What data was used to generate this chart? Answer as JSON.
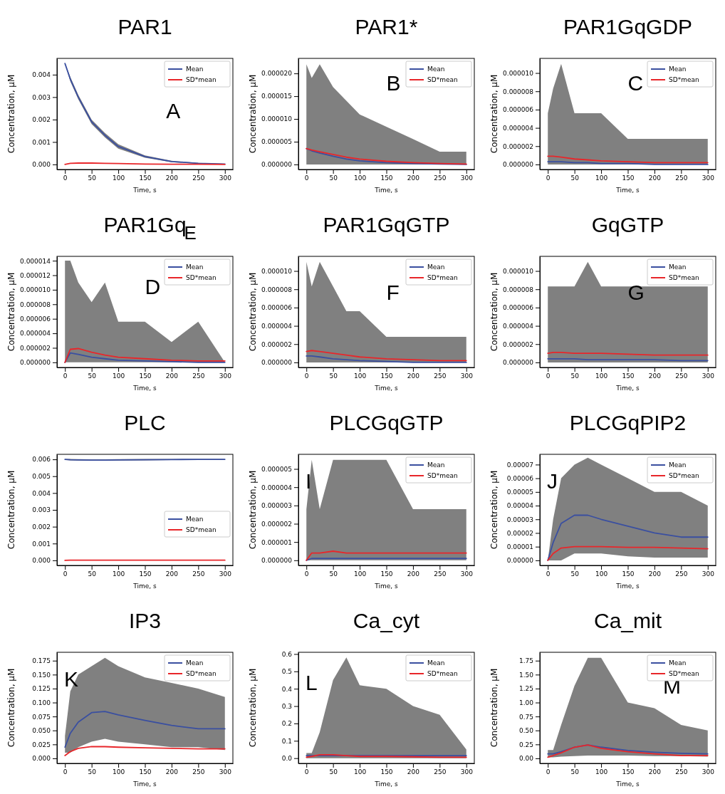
{
  "chart_data": [
    {
      "type": "line",
      "title": "PAR1",
      "xlabel": "Time, s",
      "ylabel": "Concentration, μM",
      "annotations": [
        "A"
      ],
      "legend": "top right",
      "x": [
        0,
        10,
        25,
        50,
        75,
        100,
        150,
        200,
        250,
        300
      ],
      "xlim": [
        -15,
        315
      ],
      "xticks": [
        0,
        50,
        100,
        150,
        200,
        250,
        300
      ],
      "ylim": [
        -0.000225,
        0.004725
      ],
      "yticks": [
        {
          "value": 0,
          "label": "0.000"
        },
        {
          "value": 0.001,
          "label": "0.001"
        },
        {
          "value": 0.002,
          "label": "0.002"
        },
        {
          "value": 0.003,
          "label": "0.003"
        },
        {
          "value": 0.004,
          "label": "0.004"
        }
      ],
      "series": [
        {
          "name": "Mean",
          "color": "#3a4fa0",
          "values": [
            0.0045,
            0.0038,
            0.003,
            0.0019,
            0.0013,
            0.0008,
            0.00035,
            0.00013,
            5e-05,
            2e-05
          ],
          "upper": [
            0.0045,
            0.0039,
            0.0031,
            0.002,
            0.0014,
            0.0009,
            0.0004,
            0.00016,
            7e-05,
            3e-05
          ],
          "lower": [
            0.0045,
            0.0037,
            0.0029,
            0.0018,
            0.0012,
            0.0007,
            0.0003,
            0.0001,
            3e-05,
            1e-05
          ]
        },
        {
          "name": "SD*mean",
          "color": "#e8262a",
          "values": [
            0,
            5e-05,
            6e-05,
            6e-05,
            5e-05,
            4e-05,
            2e-05,
            1e-05,
            1e-05,
            0
          ]
        }
      ]
    },
    {
      "type": "line",
      "title": "PAR1*",
      "xlabel": "Time, s",
      "ylabel": "Concentration, μM",
      "annotations": [
        "B"
      ],
      "legend": "top right",
      "x": [
        0,
        10,
        25,
        50,
        75,
        100,
        150,
        200,
        250,
        300
      ],
      "xlim": [
        -15,
        315
      ],
      "xticks": [
        0,
        50,
        100,
        150,
        200,
        250,
        300
      ],
      "ylim": [
        -1.1e-06,
        2.33e-05
      ],
      "yticks": [
        {
          "value": 0,
          "label": "0.000000"
        },
        {
          "value": 5e-06,
          "label": "0.000005"
        },
        {
          "value": 1e-05,
          "label": "0.000010"
        },
        {
          "value": 1.5e-05,
          "label": "0.000015"
        },
        {
          "value": 2e-05,
          "label": "0.000020"
        }
      ],
      "series": [
        {
          "name": "Mean",
          "color": "#3a4fa0",
          "values": [
            3.5e-06,
            3e-06,
            2.5e-06,
            1.8e-06,
            1.2e-06,
            8e-07,
            4e-07,
            2e-07,
            1e-07,
            0
          ],
          "upper": [
            2.2e-05,
            1.9e-05,
            2.2e-05,
            1.7e-05,
            1.4e-05,
            1.1e-05,
            8.3e-06,
            5.6e-06,
            2.8e-06,
            2.8e-06
          ],
          "lower": [
            0,
            0,
            0,
            0,
            0,
            0,
            0,
            0,
            0,
            0
          ]
        },
        {
          "name": "SD*mean",
          "color": "#e8262a",
          "values": [
            3.5e-06,
            3.2e-06,
            2.8e-06,
            2.2e-06,
            1.6e-06,
            1.2e-06,
            7e-07,
            4e-07,
            2e-07,
            1e-07
          ]
        }
      ]
    },
    {
      "type": "line",
      "title": "PAR1GqGDP",
      "xlabel": "Time, s",
      "ylabel": "Concentration, μM",
      "annotations": [
        "C"
      ],
      "legend": "top right",
      "x": [
        0,
        10,
        25,
        50,
        75,
        100,
        150,
        200,
        250,
        300
      ],
      "xlim": [
        -15,
        315
      ],
      "xticks": [
        0,
        50,
        100,
        150,
        200,
        250,
        300
      ],
      "ylim": [
        -5.5e-07,
        1.16e-05
      ],
      "yticks": [
        {
          "value": 0,
          "label": "0.000000"
        },
        {
          "value": 2e-06,
          "label": "0.000002"
        },
        {
          "value": 4e-06,
          "label": "0.000004"
        },
        {
          "value": 6e-06,
          "label": "0.000006"
        },
        {
          "value": 8e-06,
          "label": "0.000008"
        },
        {
          "value": 1e-05,
          "label": "0.000010"
        }
      ],
      "series": [
        {
          "name": "Mean",
          "color": "#3a4fa0",
          "values": [
            3e-07,
            3e-07,
            3e-07,
            2e-07,
            2e-07,
            1e-07,
            1e-07,
            0,
            0,
            0
          ],
          "upper": [
            5.6e-06,
            8.3e-06,
            1.1e-05,
            5.6e-06,
            5.6e-06,
            5.6e-06,
            2.8e-06,
            2.8e-06,
            2.8e-06,
            2.8e-06
          ],
          "lower": [
            0,
            0,
            0,
            0,
            0,
            0,
            0,
            0,
            0,
            0
          ]
        },
        {
          "name": "SD*mean",
          "color": "#e8262a",
          "values": [
            9e-07,
            9e-07,
            8e-07,
            6e-07,
            5e-07,
            4e-07,
            3e-07,
            2e-07,
            2e-07,
            2e-07
          ]
        }
      ]
    },
    {
      "type": "line",
      "title": "PAR1Gq",
      "xlabel": "Time, s",
      "ylabel": "Concentration, μM",
      "annotations": [
        "D",
        "E"
      ],
      "legend": "top right",
      "x": [
        0,
        10,
        25,
        50,
        75,
        100,
        150,
        200,
        250,
        300
      ],
      "xlim": [
        -15,
        315
      ],
      "xticks": [
        0,
        50,
        100,
        150,
        200,
        250,
        300
      ],
      "ylim": [
        -7e-07,
        1.46e-05
      ],
      "yticks": [
        {
          "value": 0,
          "label": "0.000000"
        },
        {
          "value": 2e-06,
          "label": "0.000002"
        },
        {
          "value": 4e-06,
          "label": "0.000004"
        },
        {
          "value": 6e-06,
          "label": "0.000006"
        },
        {
          "value": 8e-06,
          "label": "0.000008"
        },
        {
          "value": 1e-05,
          "label": "0.000010"
        },
        {
          "value": 1.2e-05,
          "label": "0.000012"
        },
        {
          "value": 1.4e-05,
          "label": "0.000014"
        }
      ],
      "series": [
        {
          "name": "Mean",
          "color": "#3a4fa0",
          "values": [
            0,
            1.3e-06,
            1.1e-06,
            7e-07,
            5e-07,
            3e-07,
            2e-07,
            1e-07,
            0,
            0
          ],
          "upper": [
            1.4e-05,
            1.4e-05,
            1.1e-05,
            8.3e-06,
            1.1e-05,
            5.6e-06,
            5.6e-06,
            2.8e-06,
            5.6e-06,
            0
          ],
          "lower": [
            0,
            0,
            0,
            0,
            0,
            0,
            0,
            0,
            0,
            0
          ]
        },
        {
          "name": "SD*mean",
          "color": "#e8262a",
          "values": [
            0,
            1.8e-06,
            1.9e-06,
            1.4e-06,
            1e-06,
            7e-07,
            5e-07,
            3e-07,
            2e-07,
            2e-07
          ]
        }
      ]
    },
    {
      "type": "line",
      "title": "PAR1GqGTP",
      "xlabel": "Time, s",
      "ylabel": "Concentration, μM",
      "annotations": [
        "F"
      ],
      "legend": "top right",
      "x": [
        0,
        10,
        25,
        50,
        75,
        100,
        150,
        200,
        250,
        300
      ],
      "xlim": [
        -15,
        315
      ],
      "xticks": [
        0,
        50,
        100,
        150,
        200,
        250,
        300
      ],
      "ylim": [
        -5.5e-07,
        1.16e-05
      ],
      "yticks": [
        {
          "value": 0,
          "label": "0.000000"
        },
        {
          "value": 2e-06,
          "label": "0.000002"
        },
        {
          "value": 4e-06,
          "label": "0.000004"
        },
        {
          "value": 6e-06,
          "label": "0.000006"
        },
        {
          "value": 8e-06,
          "label": "0.000008"
        },
        {
          "value": 1e-05,
          "label": "0.000010"
        }
      ],
      "series": [
        {
          "name": "Mean",
          "color": "#3a4fa0",
          "values": [
            7e-07,
            7e-07,
            6e-07,
            4e-07,
            3e-07,
            2e-07,
            1e-07,
            0,
            0,
            0
          ],
          "upper": [
            1.1e-05,
            8.3e-06,
            1.1e-05,
            8.3e-06,
            5.6e-06,
            5.6e-06,
            2.8e-06,
            2.8e-06,
            2.8e-06,
            2.8e-06
          ],
          "lower": [
            0,
            0,
            0,
            0,
            0,
            0,
            0,
            0,
            0,
            0
          ]
        },
        {
          "name": "SD*mean",
          "color": "#e8262a",
          "values": [
            1.2e-06,
            1.3e-06,
            1.2e-06,
            1e-06,
            8e-07,
            6e-07,
            4e-07,
            3e-07,
            2e-07,
            2e-07
          ]
        }
      ]
    },
    {
      "type": "line",
      "title": "GqGTP",
      "xlabel": "Time, s",
      "ylabel": "Concentration, μM",
      "annotations": [
        "G"
      ],
      "legend": "top right",
      "x": [
        0,
        10,
        25,
        50,
        75,
        100,
        150,
        200,
        250,
        300
      ],
      "xlim": [
        -15,
        315
      ],
      "xticks": [
        0,
        50,
        100,
        150,
        200,
        250,
        300
      ],
      "ylim": [
        -5.5e-07,
        1.16e-05
      ],
      "yticks": [
        {
          "value": 0,
          "label": "0.000000"
        },
        {
          "value": 2e-06,
          "label": "0.000002"
        },
        {
          "value": 4e-06,
          "label": "0.000004"
        },
        {
          "value": 6e-06,
          "label": "0.000006"
        },
        {
          "value": 8e-06,
          "label": "0.000008"
        },
        {
          "value": 1e-05,
          "label": "0.000010"
        }
      ],
      "series": [
        {
          "name": "Mean",
          "color": "#3a4fa0",
          "values": [
            4e-07,
            4e-07,
            4e-07,
            4e-07,
            3e-07,
            3e-07,
            3e-07,
            3e-07,
            2e-07,
            2e-07
          ],
          "upper": [
            8.3e-06,
            8.3e-06,
            8.3e-06,
            8.3e-06,
            1.1e-05,
            8.3e-06,
            8.3e-06,
            8.3e-06,
            8.3e-06,
            8.3e-06
          ],
          "lower": [
            0,
            0,
            0,
            0,
            0,
            0,
            0,
            0,
            0,
            0
          ]
        },
        {
          "name": "SD*mean",
          "color": "#e8262a",
          "values": [
            1e-06,
            1.1e-06,
            1.1e-06,
            1e-06,
            1e-06,
            1e-06,
            9e-07,
            8e-07,
            8e-07,
            8e-07
          ]
        }
      ]
    },
    {
      "type": "line",
      "title": "PLC",
      "xlabel": "Time, s",
      "ylabel": "Concentration, μM",
      "legend": "right",
      "x": [
        0,
        10,
        25,
        50,
        75,
        100,
        150,
        200,
        250,
        300
      ],
      "xlim": [
        -15,
        315
      ],
      "xticks": [
        0,
        50,
        100,
        150,
        200,
        250,
        300
      ],
      "ylim": [
        -0.0003,
        0.0063
      ],
      "yticks": [
        {
          "value": 0,
          "label": "0.000"
        },
        {
          "value": 0.001,
          "label": "0.001"
        },
        {
          "value": 0.002,
          "label": "0.002"
        },
        {
          "value": 0.003,
          "label": "0.003"
        },
        {
          "value": 0.004,
          "label": "0.004"
        },
        {
          "value": 0.005,
          "label": "0.005"
        },
        {
          "value": 0.006,
          "label": "0.006"
        }
      ],
      "series": [
        {
          "name": "Mean",
          "color": "#3a4fa0",
          "values": [
            0.006,
            0.00598,
            0.00597,
            0.00596,
            0.00596,
            0.00597,
            0.00598,
            0.00599,
            0.006,
            0.006
          ],
          "upper": [
            0.00603,
            0.00602,
            0.00601,
            0.006,
            0.006,
            0.00601,
            0.00602,
            0.00602,
            0.00603,
            0.00603
          ],
          "lower": [
            0.00597,
            0.00594,
            0.00593,
            0.00592,
            0.00592,
            0.00593,
            0.00594,
            0.00596,
            0.00597,
            0.00597
          ]
        },
        {
          "name": "SD*mean",
          "color": "#e8262a",
          "values": [
            0,
            1e-05,
            1e-05,
            1e-05,
            1e-05,
            1e-05,
            1e-05,
            1e-05,
            1e-05,
            1e-05
          ]
        }
      ]
    },
    {
      "type": "line",
      "title": "PLCGqGTP",
      "xlabel": "Time, s",
      "ylabel": "Concentration, μM",
      "annotations": [
        "I"
      ],
      "legend": "top right",
      "x": [
        0,
        10,
        25,
        50,
        75,
        100,
        150,
        200,
        250,
        300
      ],
      "xlim": [
        -15,
        315
      ],
      "xticks": [
        0,
        50,
        100,
        150,
        200,
        250,
        300
      ],
      "ylim": [
        -2.8e-07,
        5.8e-06
      ],
      "yticks": [
        {
          "value": 0,
          "label": "0.000000"
        },
        {
          "value": 1e-06,
          "label": "0.000001"
        },
        {
          "value": 2e-06,
          "label": "0.000002"
        },
        {
          "value": 3e-06,
          "label": "0.000003"
        },
        {
          "value": 4e-06,
          "label": "0.000004"
        },
        {
          "value": 5e-06,
          "label": "0.000005"
        }
      ],
      "series": [
        {
          "name": "Mean",
          "color": "#3a4fa0",
          "values": [
            0,
            1e-07,
            1e-07,
            1e-07,
            1e-07,
            1e-07,
            1e-07,
            1e-07,
            1e-07,
            1e-07
          ],
          "upper": [
            2.8e-06,
            5.5e-06,
            2.8e-06,
            5.5e-06,
            5.5e-06,
            5.5e-06,
            5.5e-06,
            2.8e-06,
            2.8e-06,
            2.8e-06
          ],
          "lower": [
            0,
            0,
            0,
            0,
            0,
            0,
            0,
            0,
            0,
            0
          ]
        },
        {
          "name": "SD*mean",
          "color": "#e8262a",
          "values": [
            0,
            4e-07,
            4e-07,
            5e-07,
            4e-07,
            4e-07,
            4e-07,
            4e-07,
            4e-07,
            4e-07
          ]
        }
      ]
    },
    {
      "type": "line",
      "title": "PLCGqPIP2",
      "xlabel": "Time, s",
      "ylabel": "Concentration, μM",
      "annotations": [
        "J"
      ],
      "legend": "top right",
      "x": [
        0,
        10,
        25,
        50,
        75,
        100,
        150,
        200,
        250,
        300
      ],
      "xlim": [
        -15,
        315
      ],
      "xticks": [
        0,
        50,
        100,
        150,
        200,
        250,
        300
      ],
      "ylim": [
        -3.7e-06,
        7.75e-05
      ],
      "yticks": [
        {
          "value": 0,
          "label": "0.00000"
        },
        {
          "value": 1e-05,
          "label": "0.00001"
        },
        {
          "value": 2e-05,
          "label": "0.00002"
        },
        {
          "value": 3e-05,
          "label": "0.00003"
        },
        {
          "value": 4e-05,
          "label": "0.00004"
        },
        {
          "value": 5e-05,
          "label": "0.00005"
        },
        {
          "value": 6e-05,
          "label": "0.00006"
        },
        {
          "value": 7e-05,
          "label": "0.00007"
        }
      ],
      "series": [
        {
          "name": "Mean",
          "color": "#3a4fa0",
          "values": [
            0,
            1.3e-05,
            2.7e-05,
            3.3e-05,
            3.3e-05,
            3e-05,
            2.5e-05,
            2e-05,
            1.7e-05,
            1.7e-05
          ],
          "upper": [
            0,
            3e-05,
            6e-05,
            7e-05,
            7.5e-05,
            7e-05,
            6e-05,
            5e-05,
            5e-05,
            4e-05
          ],
          "lower": [
            0,
            0,
            0,
            5e-06,
            5e-06,
            5e-06,
            3e-06,
            2e-06,
            2e-06,
            2e-06
          ]
        },
        {
          "name": "SD*mean",
          "color": "#e8262a",
          "values": [
            0,
            5e-06,
            9e-06,
            1e-05,
            1e-05,
            1e-05,
            9.5e-06,
            9.5e-06,
            9e-06,
            8.5e-06
          ]
        }
      ]
    },
    {
      "type": "line",
      "title": "IP3",
      "xlabel": "Time, s",
      "ylabel": "Concentration, μM",
      "annotations": [
        "K"
      ],
      "legend": "top right",
      "x": [
        0,
        10,
        25,
        50,
        75,
        100,
        150,
        200,
        250,
        300
      ],
      "xlim": [
        -15,
        315
      ],
      "xticks": [
        0,
        50,
        100,
        150,
        200,
        250,
        300
      ],
      "ylim": [
        -0.009,
        0.19
      ],
      "yticks": [
        {
          "value": 0,
          "label": "0.000"
        },
        {
          "value": 0.025,
          "label": "0.025"
        },
        {
          "value": 0.05,
          "label": "0.050"
        },
        {
          "value": 0.075,
          "label": "0.075"
        },
        {
          "value": 0.1,
          "label": "0.100"
        },
        {
          "value": 0.125,
          "label": "0.125"
        },
        {
          "value": 0.15,
          "label": "0.150"
        },
        {
          "value": 0.175,
          "label": "0.175"
        }
      ],
      "series": [
        {
          "name": "Mean",
          "color": "#3a4fa0",
          "values": [
            0.02,
            0.045,
            0.065,
            0.082,
            0.084,
            0.078,
            0.068,
            0.059,
            0.053,
            0.053
          ],
          "upper": [
            0.04,
            0.12,
            0.15,
            0.165,
            0.18,
            0.165,
            0.145,
            0.135,
            0.125,
            0.11
          ],
          "lower": [
            0.01,
            0.01,
            0.02,
            0.03,
            0.035,
            0.03,
            0.025,
            0.02,
            0.02,
            0.015
          ]
        },
        {
          "name": "SD*mean",
          "color": "#e8262a",
          "values": [
            0.005,
            0.012,
            0.018,
            0.021,
            0.021,
            0.02,
            0.019,
            0.018,
            0.017,
            0.017
          ]
        }
      ]
    },
    {
      "type": "line",
      "title": "Ca_cyt",
      "xlabel": "Time, s",
      "ylabel": "Concentration, μM",
      "annotations": [
        "L"
      ],
      "legend": "top right",
      "x": [
        0,
        10,
        25,
        50,
        75,
        100,
        150,
        200,
        250,
        300
      ],
      "xlim": [
        -15,
        315
      ],
      "xticks": [
        0,
        50,
        100,
        150,
        200,
        250,
        300
      ],
      "ylim": [
        -0.03,
        0.61
      ],
      "yticks": [
        {
          "value": 0,
          "label": "0.0"
        },
        {
          "value": 0.1,
          "label": "0.1"
        },
        {
          "value": 0.2,
          "label": "0.2"
        },
        {
          "value": 0.3,
          "label": "0.3"
        },
        {
          "value": 0.4,
          "label": "0.4"
        },
        {
          "value": 0.5,
          "label": "0.5"
        },
        {
          "value": 0.6,
          "label": "0.6"
        }
      ],
      "series": [
        {
          "name": "Mean",
          "color": "#3a4fa0",
          "values": [
            0.015,
            0.015,
            0.015,
            0.015,
            0.015,
            0.015,
            0.015,
            0.015,
            0.015,
            0.015
          ],
          "upper": [
            0.03,
            0.03,
            0.15,
            0.45,
            0.58,
            0.42,
            0.4,
            0.3,
            0.25,
            0.05
          ],
          "lower": [
            0,
            0,
            0,
            0,
            0,
            0,
            0,
            0,
            0,
            0
          ]
        },
        {
          "name": "SD*mean",
          "color": "#e8262a",
          "values": [
            0.005,
            0.01,
            0.02,
            0.02,
            0.015,
            0.01,
            0.01,
            0.008,
            0.005,
            0.005
          ]
        }
      ]
    },
    {
      "type": "line",
      "title": "Ca_mit",
      "xlabel": "Time, s",
      "ylabel": "Concentration, μM",
      "annotations": [
        "M"
      ],
      "legend": "top right",
      "x": [
        0,
        10,
        25,
        50,
        75,
        100,
        150,
        200,
        250,
        300
      ],
      "xlim": [
        -15,
        315
      ],
      "xticks": [
        0,
        50,
        100,
        150,
        200,
        250,
        300
      ],
      "ylim": [
        -0.09,
        1.9
      ],
      "yticks": [
        {
          "value": 0,
          "label": "0.00"
        },
        {
          "value": 0.25,
          "label": "0.25"
        },
        {
          "value": 0.5,
          "label": "0.50"
        },
        {
          "value": 0.75,
          "label": "0.75"
        },
        {
          "value": 1,
          "label": "1.00"
        },
        {
          "value": 1.25,
          "label": "1.25"
        },
        {
          "value": 1.5,
          "label": "1.50"
        },
        {
          "value": 1.75,
          "label": "1.75"
        }
      ],
      "series": [
        {
          "name": "Mean",
          "color": "#3a4fa0",
          "values": [
            0.08,
            0.08,
            0.12,
            0.2,
            0.24,
            0.2,
            0.14,
            0.11,
            0.09,
            0.08
          ],
          "upper": [
            0.15,
            0.15,
            0.6,
            1.3,
            1.8,
            1.8,
            1,
            0.9,
            0.6,
            0.5
          ],
          "lower": [
            0.02,
            0.02,
            0.03,
            0.04,
            0.05,
            0.05,
            0.05,
            0.04,
            0.04,
            0.03
          ]
        },
        {
          "name": "SD*mean",
          "color": "#e8262a",
          "values": [
            0.02,
            0.05,
            0.1,
            0.2,
            0.24,
            0.18,
            0.12,
            0.08,
            0.05,
            0.05
          ]
        }
      ]
    }
  ]
}
